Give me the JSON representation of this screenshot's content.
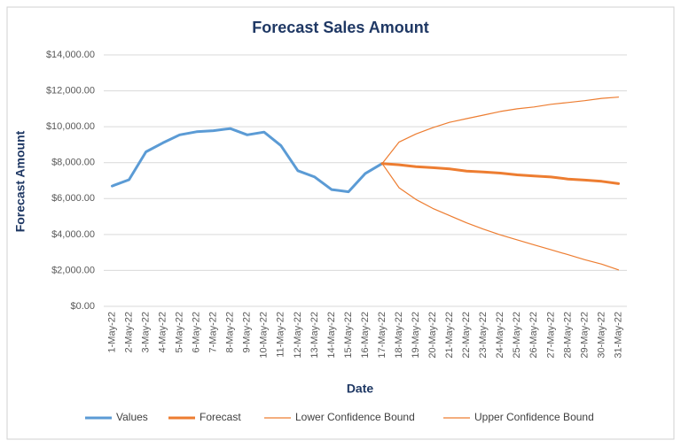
{
  "chart_data": {
    "type": "line",
    "title": "Forecast Sales Amount",
    "x_label": "Date",
    "y_label": "Forecast Amount",
    "categories": [
      "1-May-22",
      "2-May-22",
      "3-May-22",
      "4-May-22",
      "5-May-22",
      "6-May-22",
      "7-May-22",
      "8-May-22",
      "9-May-22",
      "10-May-22",
      "11-May-22",
      "12-May-22",
      "13-May-22",
      "14-May-22",
      "15-May-22",
      "16-May-22",
      "17-May-22",
      "18-May-22",
      "19-May-22",
      "20-May-22",
      "21-May-22",
      "22-May-22",
      "23-May-22",
      "24-May-22",
      "25-May-22",
      "26-May-22",
      "27-May-22",
      "28-May-22",
      "29-May-22",
      "30-May-22",
      "31-May-22"
    ],
    "series": [
      {
        "name": "Values",
        "color": "#5b9bd5",
        "width": 3,
        "values": [
          6700,
          7050,
          8600,
          9100,
          9550,
          9720,
          9780,
          9900,
          9550,
          9700,
          8950,
          7550,
          7200,
          6500,
          6380,
          7400,
          7950,
          null,
          null,
          null,
          null,
          null,
          null,
          null,
          null,
          null,
          null,
          null,
          null,
          null,
          null
        ]
      },
      {
        "name": "Forecast",
        "color": "#ed7d31",
        "width": 3,
        "values": [
          null,
          null,
          null,
          null,
          null,
          null,
          null,
          null,
          null,
          null,
          null,
          null,
          null,
          null,
          null,
          null,
          7950,
          7880,
          7780,
          7720,
          7650,
          7530,
          7480,
          7420,
          7320,
          7260,
          7200,
          7090,
          7030,
          6960,
          6830
        ]
      },
      {
        "name": "Lower Confidence Bound",
        "color": "#ed7d31",
        "width": 1.2,
        "values": [
          null,
          null,
          null,
          null,
          null,
          null,
          null,
          null,
          null,
          null,
          null,
          null,
          null,
          null,
          null,
          null,
          7950,
          6600,
          5950,
          5450,
          5050,
          4650,
          4300,
          3980,
          3700,
          3420,
          3150,
          2880,
          2600,
          2350,
          2030
        ]
      },
      {
        "name": "Upper Confidence Bound",
        "color": "#ed7d31",
        "width": 1.2,
        "values": [
          null,
          null,
          null,
          null,
          null,
          null,
          null,
          null,
          null,
          null,
          null,
          null,
          null,
          null,
          null,
          null,
          7950,
          9150,
          9600,
          9950,
          10250,
          10450,
          10650,
          10850,
          11000,
          11100,
          11250,
          11350,
          11450,
          11580,
          11650
        ]
      }
    ],
    "ylim": [
      0,
      14000
    ],
    "yticks": [
      {
        "value": 0,
        "label": "$0.00"
      },
      {
        "value": 2000,
        "label": "$2,000.00"
      },
      {
        "value": 4000,
        "label": "$4,000.00"
      },
      {
        "value": 6000,
        "label": "$6,000.00"
      },
      {
        "value": 8000,
        "label": "$8,000.00"
      },
      {
        "value": 10000,
        "label": "$10,000.00"
      },
      {
        "value": 12000,
        "label": "$12,000.00"
      },
      {
        "value": 14000,
        "label": "$14,000.00"
      }
    ],
    "grid": true,
    "legend": "bottom"
  }
}
